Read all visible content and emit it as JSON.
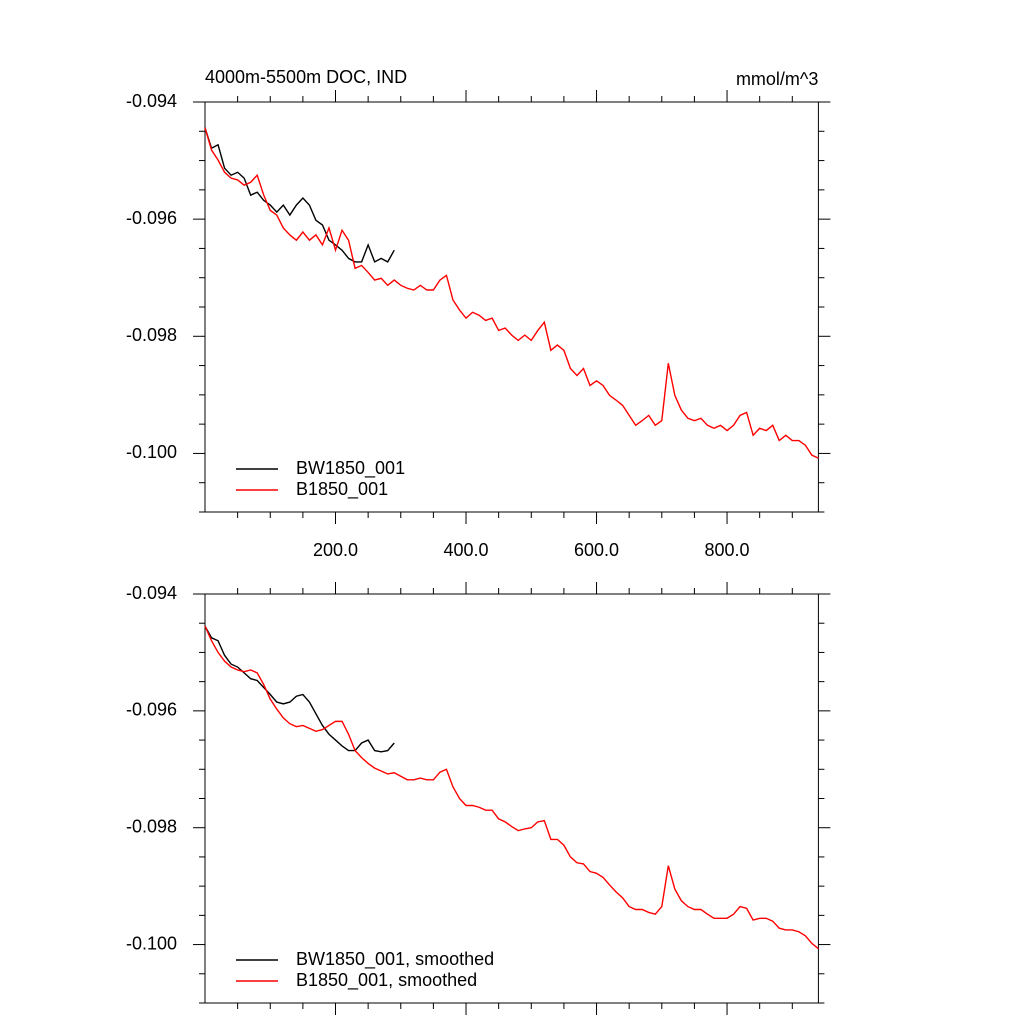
{
  "chart_data": [
    {
      "type": "line",
      "title": "4000m-5500m DOC, IND",
      "units": "mmol/m^3",
      "x": [
        0,
        10,
        20,
        30,
        40,
        50,
        60,
        70,
        80,
        90,
        100,
        110,
        120,
        130,
        140,
        150,
        160,
        170,
        180,
        190,
        200,
        210,
        220,
        230,
        240,
        250,
        260,
        270,
        280,
        290,
        300,
        310,
        320,
        330,
        340,
        350,
        360,
        370,
        380,
        390,
        400,
        410,
        420,
        430,
        440,
        450,
        460,
        470,
        480,
        490,
        500,
        510,
        520,
        530,
        540,
        550,
        560,
        570,
        580,
        590,
        600,
        610,
        620,
        630,
        640,
        650,
        660,
        670,
        680,
        690,
        700,
        710,
        720,
        730,
        740,
        750,
        760,
        770,
        780,
        790,
        800,
        810,
        820,
        830,
        840,
        850,
        860,
        870,
        880,
        890,
        900,
        910,
        920,
        930,
        940
      ],
      "series": [
        {
          "name": "BW1850_001",
          "color": "#000000",
          "values": [
            -0.09444,
            -0.09479,
            -0.09473,
            -0.09513,
            -0.09525,
            -0.0952,
            -0.0953,
            -0.09559,
            -0.09554,
            -0.09568,
            -0.09576,
            -0.09588,
            -0.09576,
            -0.09593,
            -0.09576,
            -0.09564,
            -0.09576,
            -0.09602,
            -0.0961,
            -0.09636,
            -0.09644,
            -0.09653,
            -0.09667,
            -0.09673,
            -0.09673,
            -0.09644,
            -0.09673,
            -0.09667,
            -0.09673,
            -0.09653,
            null,
            null,
            null,
            null,
            null,
            null,
            null,
            null,
            null,
            null,
            null,
            null,
            null,
            null,
            null,
            null,
            null,
            null,
            null,
            null,
            null,
            null,
            null,
            null,
            null,
            null,
            null,
            null,
            null,
            null,
            null,
            null,
            null,
            null,
            null,
            null,
            null,
            null,
            null,
            null,
            null,
            null,
            null,
            null,
            null,
            null,
            null,
            null,
            null,
            null,
            null,
            null,
            null,
            null,
            null,
            null,
            null,
            null,
            null,
            null,
            null,
            null,
            null,
            null,
            null
          ]
        },
        {
          "name": "B1850_001",
          "color": "#ff0000",
          "values": [
            -0.09444,
            -0.09482,
            -0.09499,
            -0.0952,
            -0.0953,
            -0.09533,
            -0.09542,
            -0.09537,
            -0.09525,
            -0.09559,
            -0.09585,
            -0.09593,
            -0.09615,
            -0.09627,
            -0.09636,
            -0.09622,
            -0.09636,
            -0.09627,
            -0.09644,
            -0.09615,
            -0.09653,
            -0.09619,
            -0.09636,
            -0.09684,
            -0.09679,
            -0.09691,
            -0.09704,
            -0.09701,
            -0.09713,
            -0.09704,
            -0.09713,
            -0.09718,
            -0.09721,
            -0.09713,
            -0.09721,
            -0.09721,
            -0.09704,
            -0.09696,
            -0.09738,
            -0.09755,
            -0.09769,
            -0.09759,
            -0.09764,
            -0.09773,
            -0.09769,
            -0.0979,
            -0.09786,
            -0.09798,
            -0.09807,
            -0.09798,
            -0.09807,
            -0.0979,
            -0.09776,
            -0.09824,
            -0.09815,
            -0.09824,
            -0.09855,
            -0.09867,
            -0.09855,
            -0.09884,
            -0.09876,
            -0.09884,
            -0.09901,
            -0.09909,
            -0.09918,
            -0.09935,
            -0.09952,
            -0.09944,
            -0.09935,
            -0.09952,
            -0.09944,
            -0.09846,
            -0.09901,
            -0.09926,
            -0.0994,
            -0.09944,
            -0.0994,
            -0.09952,
            -0.09957,
            -0.09952,
            -0.09961,
            -0.09952,
            -0.09935,
            -0.0993,
            -0.09969,
            -0.09957,
            -0.09961,
            -0.09952,
            -0.09978,
            -0.09969,
            -0.09978,
            -0.09978,
            -0.09986,
            -0.10003,
            -0.10008
          ]
        }
      ],
      "xlim": [
        0,
        940
      ],
      "xticks": [
        {
          "value": 200,
          "label": "200.0"
        },
        {
          "value": 400,
          "label": "400.0"
        },
        {
          "value": 600,
          "label": "600.0"
        },
        {
          "value": 800,
          "label": "800.0"
        }
      ],
      "xtick_labels": true,
      "ylim": [
        -0.101,
        -0.094
      ],
      "yticks": [
        -0.094,
        -0.096,
        -0.098,
        {
          "value": -0.1,
          "label": "-0.100"
        }
      ],
      "legend": "lower left"
    },
    {
      "type": "line",
      "x": [
        0,
        10,
        20,
        30,
        40,
        50,
        60,
        70,
        80,
        90,
        100,
        110,
        120,
        130,
        140,
        150,
        160,
        170,
        180,
        190,
        200,
        210,
        220,
        230,
        240,
        250,
        260,
        270,
        280,
        290,
        300,
        310,
        320,
        330,
        340,
        350,
        360,
        370,
        380,
        390,
        400,
        410,
        420,
        430,
        440,
        450,
        460,
        470,
        480,
        490,
        500,
        510,
        520,
        530,
        540,
        550,
        560,
        570,
        580,
        590,
        600,
        610,
        620,
        630,
        640,
        650,
        660,
        670,
        680,
        690,
        700,
        710,
        720,
        730,
        740,
        750,
        760,
        770,
        780,
        790,
        800,
        810,
        820,
        830,
        840,
        850,
        860,
        870,
        880,
        890,
        900,
        910,
        920,
        930,
        940
      ],
      "series": [
        {
          "name": "BW1850_001, smoothed",
          "color": "#000000",
          "values": [
            -0.09455,
            -0.09475,
            -0.0948,
            -0.09505,
            -0.0952,
            -0.09525,
            -0.09535,
            -0.09545,
            -0.09548,
            -0.0956,
            -0.09572,
            -0.09585,
            -0.09588,
            -0.09585,
            -0.09575,
            -0.09572,
            -0.09585,
            -0.09605,
            -0.09625,
            -0.0964,
            -0.0965,
            -0.0966,
            -0.09668,
            -0.09668,
            -0.09655,
            -0.0965,
            -0.09668,
            -0.0967,
            -0.09668,
            -0.09655,
            null,
            null,
            null,
            null,
            null,
            null,
            null,
            null,
            null,
            null,
            null,
            null,
            null,
            null,
            null,
            null,
            null,
            null,
            null,
            null,
            null,
            null,
            null,
            null,
            null,
            null,
            null,
            null,
            null,
            null,
            null,
            null,
            null,
            null,
            null,
            null,
            null,
            null,
            null,
            null,
            null,
            null,
            null,
            null,
            null,
            null,
            null,
            null,
            null,
            null,
            null,
            null,
            null,
            null,
            null,
            null,
            null,
            null,
            null,
            null,
            null,
            null,
            null,
            null,
            null
          ]
        },
        {
          "name": "B1850_001, smoothed",
          "color": "#ff0000",
          "values": [
            -0.09455,
            -0.0948,
            -0.095,
            -0.09515,
            -0.09525,
            -0.0953,
            -0.09533,
            -0.0953,
            -0.09535,
            -0.09555,
            -0.0958,
            -0.09597,
            -0.09612,
            -0.09622,
            -0.09627,
            -0.09625,
            -0.0963,
            -0.09635,
            -0.09632,
            -0.09625,
            -0.09618,
            -0.09618,
            -0.0964,
            -0.09668,
            -0.0968,
            -0.0969,
            -0.09698,
            -0.09703,
            -0.09708,
            -0.09706,
            -0.09712,
            -0.09718,
            -0.09718,
            -0.09715,
            -0.09718,
            -0.09718,
            -0.09705,
            -0.097,
            -0.0973,
            -0.0975,
            -0.09762,
            -0.09762,
            -0.09765,
            -0.0977,
            -0.0977,
            -0.09785,
            -0.0979,
            -0.09798,
            -0.09805,
            -0.09802,
            -0.098,
            -0.0979,
            -0.09788,
            -0.0982,
            -0.0982,
            -0.0983,
            -0.0985,
            -0.0986,
            -0.09862,
            -0.09875,
            -0.09878,
            -0.09885,
            -0.09898,
            -0.0991,
            -0.0992,
            -0.09935,
            -0.0994,
            -0.0994,
            -0.09945,
            -0.09948,
            -0.09935,
            -0.09865,
            -0.09905,
            -0.09925,
            -0.09935,
            -0.0994,
            -0.0994,
            -0.09948,
            -0.09955,
            -0.09955,
            -0.09955,
            -0.09948,
            -0.09935,
            -0.09938,
            -0.09958,
            -0.09955,
            -0.09955,
            -0.0996,
            -0.09972,
            -0.09975,
            -0.09975,
            -0.09978,
            -0.09985,
            -0.09998,
            -0.10007
          ]
        }
      ],
      "xlim": [
        0,
        940
      ],
      "xticks": [
        200,
        400,
        600,
        800
      ],
      "xtick_labels": false,
      "ylim": [
        -0.101,
        -0.094
      ],
      "yticks": [
        -0.094,
        -0.096,
        -0.098,
        {
          "value": -0.1,
          "label": "-0.100"
        }
      ],
      "legend": "lower left"
    }
  ]
}
